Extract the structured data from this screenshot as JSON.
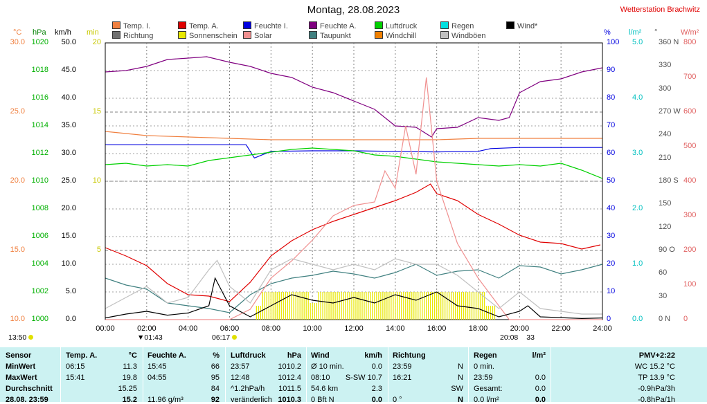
{
  "title": "Montag, 28.08.2023",
  "station": "Wetterstation Brachwitz",
  "legend": [
    {
      "label": "Temp. I.",
      "color": "#f08040"
    },
    {
      "label": "Richtung",
      "color": "#707070"
    },
    {
      "label": "Temp. A.",
      "color": "#e00000"
    },
    {
      "label": "Sonnenschein",
      "color": "#e8e800"
    },
    {
      "label": "Feuchte I.",
      "color": "#0000e0"
    },
    {
      "label": "Solar",
      "color": "#f09090"
    },
    {
      "label": "Feuchte A.",
      "color": "#800080"
    },
    {
      "label": "Taupunkt",
      "color": "#408080"
    },
    {
      "label": "Luftdruck",
      "color": "#00d000"
    },
    {
      "label": "Windchill",
      "color": "#f08000"
    },
    {
      "label": "Regen",
      "color": "#00e0e0"
    },
    {
      "label": "Windböen",
      "color": "#c0c0c0"
    },
    {
      "label": "Wind*",
      "color": "#000000"
    }
  ],
  "units": {
    "temp": "°C",
    "hpa": "hPa",
    "kmh": "km/h",
    "min": "min",
    "pct": "%",
    "rain": "l/m²",
    "dir": "°",
    "solar": "W/m²"
  },
  "chart_data": {
    "type": "line",
    "x_ticks": [
      "00:00",
      "02:00",
      "04:00",
      "06:00",
      "08:00",
      "10:00",
      "12:00",
      "14:00",
      "16:00",
      "18:00",
      "20:00",
      "22:00",
      "24:00"
    ],
    "axes": {
      "temp_c": {
        "ticks": [
          "30.0",
          "25.0",
          "20.0",
          "15.0",
          "10.0"
        ],
        "range": [
          10,
          30
        ]
      },
      "pressure_hpa": {
        "ticks": [
          "1020",
          "1018",
          "1016",
          "1014",
          "1012",
          "1010",
          "1008",
          "1006",
          "1004",
          "1002",
          "1000"
        ],
        "range": [
          1000,
          1020
        ]
      },
      "wind_kmh": {
        "ticks": [
          "50.0",
          "45.0",
          "40.0",
          "35.0",
          "30.0",
          "25.0",
          "20.0",
          "15.0",
          "10.0",
          "5.0",
          "0.0"
        ],
        "range": [
          0,
          50
        ]
      },
      "sun_min": {
        "ticks": [
          "20",
          "15",
          "10",
          "5"
        ],
        "range": [
          0,
          20
        ]
      },
      "humidity_pct": {
        "ticks": [
          "100",
          "90",
          "80",
          "70",
          "60",
          "50",
          "40",
          "30",
          "20",
          "10",
          "0"
        ],
        "range": [
          0,
          100
        ]
      },
      "rain_lm2": {
        "ticks": [
          "5.0",
          "4.0",
          "3.0",
          "2.0",
          "1.0",
          "0.0"
        ],
        "range": [
          0,
          5
        ]
      },
      "direction_deg": {
        "ticks": [
          "360 N",
          "330",
          "300",
          "270 W",
          "240",
          "210",
          "180 S",
          "150",
          "120",
          "90 O",
          "60",
          "30",
          "0 N"
        ],
        "range": [
          0,
          360
        ]
      },
      "solar_wm2": {
        "ticks": [
          "800",
          "700",
          "600",
          "500",
          "400",
          "300",
          "200",
          "100",
          "0"
        ],
        "range": [
          0,
          800
        ]
      }
    },
    "series": [
      {
        "name": "Temp. A.",
        "axis": "temp_c",
        "color": "#e00000",
        "points": [
          [
            0,
            15.2
          ],
          [
            1,
            14.6
          ],
          [
            2,
            13.9
          ],
          [
            3,
            12.6
          ],
          [
            4,
            11.8
          ],
          [
            5,
            11.7
          ],
          [
            6,
            11.3
          ],
          [
            7,
            12.7
          ],
          [
            8,
            14.6
          ],
          [
            9,
            15.7
          ],
          [
            10,
            16.5
          ],
          [
            11,
            17.1
          ],
          [
            12,
            17.6
          ],
          [
            13,
            18.1
          ],
          [
            14,
            18.6
          ],
          [
            15,
            19.2
          ],
          [
            15.7,
            19.8
          ],
          [
            16,
            19.1
          ],
          [
            17,
            18.6
          ],
          [
            18,
            17.6
          ],
          [
            19,
            16.9
          ],
          [
            20,
            16.1
          ],
          [
            21,
            15.6
          ],
          [
            22,
            15.5
          ],
          [
            23,
            15.1
          ],
          [
            23.9,
            15.4
          ]
        ]
      },
      {
        "name": "Temp. I.",
        "axis": "temp_c",
        "color": "#f08040",
        "points": [
          [
            0,
            23.6
          ],
          [
            2,
            23.3
          ],
          [
            4,
            23.2
          ],
          [
            6,
            23.1
          ],
          [
            8,
            23.0
          ],
          [
            10,
            23.0
          ],
          [
            12,
            23.0
          ],
          [
            14,
            23.0
          ],
          [
            16,
            23.0
          ],
          [
            18,
            23.1
          ],
          [
            20,
            23.1
          ],
          [
            22,
            23.1
          ],
          [
            24,
            23.1
          ]
        ]
      },
      {
        "name": "Feuchte A.",
        "axis": "humidity_pct",
        "color": "#800080",
        "points": [
          [
            0,
            89.5
          ],
          [
            1,
            90
          ],
          [
            2,
            91.5
          ],
          [
            3,
            94
          ],
          [
            4,
            94.5
          ],
          [
            4.9,
            95
          ],
          [
            6,
            93
          ],
          [
            7,
            91.5
          ],
          [
            8,
            89
          ],
          [
            9,
            87.5
          ],
          [
            10,
            84
          ],
          [
            11,
            82
          ],
          [
            12,
            79
          ],
          [
            13,
            76
          ],
          [
            14,
            70
          ],
          [
            15,
            69.5
          ],
          [
            15.75,
            66
          ],
          [
            16,
            69
          ],
          [
            17,
            69.5
          ],
          [
            18,
            73
          ],
          [
            19,
            72
          ],
          [
            19.5,
            73
          ],
          [
            20,
            82
          ],
          [
            21,
            86
          ],
          [
            22,
            87
          ],
          [
            23,
            89.5
          ],
          [
            24,
            91
          ]
        ]
      },
      {
        "name": "Feuchte I.",
        "axis": "humidity_pct",
        "color": "#0000e0",
        "points": [
          [
            0,
            63.2
          ],
          [
            6.8,
            63.2
          ],
          [
            7.2,
            58.4
          ],
          [
            8,
            60.8
          ],
          [
            10,
            61
          ],
          [
            12,
            61
          ],
          [
            14,
            60.8
          ],
          [
            16,
            60.6
          ],
          [
            18,
            60.8
          ],
          [
            18.6,
            61.8
          ],
          [
            20,
            62.2
          ],
          [
            22,
            62.2
          ],
          [
            24,
            62.2
          ]
        ]
      },
      {
        "name": "Luftdruck",
        "axis": "pressure_hpa",
        "color": "#00d000",
        "points": [
          [
            0,
            1011.2
          ],
          [
            1,
            1011.3
          ],
          [
            2,
            1011.1
          ],
          [
            3,
            1011.2
          ],
          [
            4,
            1011.1
          ],
          [
            5,
            1011.5
          ],
          [
            6,
            1011.7
          ],
          [
            7,
            1011.9
          ],
          [
            8,
            1012.1
          ],
          [
            9,
            1012.3
          ],
          [
            10,
            1012.4
          ],
          [
            11,
            1012.3
          ],
          [
            12,
            1012.2
          ],
          [
            13,
            1011.9
          ],
          [
            14,
            1011.8
          ],
          [
            15,
            1011.6
          ],
          [
            16,
            1011.4
          ],
          [
            17,
            1011.3
          ],
          [
            18,
            1011.2
          ],
          [
            19,
            1011.1
          ],
          [
            20,
            1011.2
          ],
          [
            21,
            1011.1
          ],
          [
            22,
            1011.3
          ],
          [
            23,
            1010.8
          ],
          [
            24,
            1010.2
          ]
        ]
      },
      {
        "name": "Taupunkt",
        "axis": "temp_c",
        "color": "#408080",
        "points": [
          [
            0,
            13.0
          ],
          [
            1,
            12.5
          ],
          [
            2,
            12.2
          ],
          [
            3,
            11.2
          ],
          [
            4,
            11.0
          ],
          [
            5,
            10.8
          ],
          [
            6,
            10.5
          ],
          [
            7,
            11.8
          ],
          [
            8,
            12.6
          ],
          [
            9,
            13.0
          ],
          [
            10,
            13.2
          ],
          [
            11,
            13.5
          ],
          [
            12,
            13.3
          ],
          [
            13,
            13.0
          ],
          [
            14,
            13.4
          ],
          [
            15,
            14.0
          ],
          [
            16,
            13.2
          ],
          [
            17,
            13.5
          ],
          [
            18,
            13.6
          ],
          [
            19,
            13.0
          ],
          [
            20,
            13.9
          ],
          [
            21,
            13.8
          ],
          [
            22,
            13.3
          ],
          [
            23,
            13.6
          ],
          [
            24,
            14.0
          ]
        ]
      },
      {
        "name": "Solar",
        "axis": "solar_wm2",
        "color": "#f09090",
        "points": [
          [
            0,
            0
          ],
          [
            6,
            0
          ],
          [
            7,
            30
          ],
          [
            8,
            120
          ],
          [
            9,
            170
          ],
          [
            10,
            230
          ],
          [
            11,
            300
          ],
          [
            12,
            330
          ],
          [
            13,
            340
          ],
          [
            13.5,
            430
          ],
          [
            14,
            380
          ],
          [
            14.5,
            560
          ],
          [
            15,
            420
          ],
          [
            15.5,
            700
          ],
          [
            16,
            400
          ],
          [
            17,
            220
          ],
          [
            18,
            120
          ],
          [
            19,
            40
          ],
          [
            19.5,
            0
          ],
          [
            24,
            0
          ]
        ]
      },
      {
        "name": "Wind*",
        "axis": "wind_kmh",
        "color": "#000000",
        "points": [
          [
            0,
            0.3
          ],
          [
            1,
            1.0
          ],
          [
            2,
            1.5
          ],
          [
            3,
            0.8
          ],
          [
            4,
            1.2
          ],
          [
            5,
            2.5
          ],
          [
            5.3,
            7.5
          ],
          [
            6,
            2.5
          ],
          [
            7,
            0.5
          ],
          [
            8,
            2.5
          ],
          [
            9,
            4.5
          ],
          [
            10,
            3.5
          ],
          [
            11,
            3.0
          ],
          [
            12,
            4.0
          ],
          [
            13,
            3.0
          ],
          [
            14,
            4.5
          ],
          [
            15,
            3.5
          ],
          [
            16,
            5.0
          ],
          [
            17,
            2.5
          ],
          [
            18,
            2.0
          ],
          [
            19,
            0.5
          ],
          [
            20,
            1.5
          ],
          [
            20.4,
            2.5
          ],
          [
            21,
            0.5
          ],
          [
            23,
            0.2
          ],
          [
            24,
            0.3
          ]
        ]
      },
      {
        "name": "Windböen",
        "axis": "wind_kmh",
        "color": "#c0c0c0",
        "points": [
          [
            0,
            2
          ],
          [
            1,
            4
          ],
          [
            2,
            6
          ],
          [
            3,
            3
          ],
          [
            4,
            4
          ],
          [
            5,
            9
          ],
          [
            5.4,
            10.7
          ],
          [
            6,
            6
          ],
          [
            7,
            3
          ],
          [
            8,
            9
          ],
          [
            9,
            11
          ],
          [
            10,
            10
          ],
          [
            11,
            9
          ],
          [
            12,
            10
          ],
          [
            13,
            9
          ],
          [
            14,
            11
          ],
          [
            15,
            10
          ],
          [
            16,
            10
          ],
          [
            17,
            8
          ],
          [
            18,
            5
          ],
          [
            19,
            2
          ],
          [
            20,
            5
          ],
          [
            21,
            2
          ],
          [
            23,
            1
          ],
          [
            24,
            1
          ]
        ]
      }
    ]
  },
  "annotations": {
    "left_time": "13:50",
    "sunrise_marker": "01:43",
    "sunrise": "06:17",
    "sunset": "20:08",
    "sunset_min": "33"
  },
  "table": {
    "sensor": {
      "header": "Sensor",
      "rows": [
        "MinWert",
        "MaxWert",
        "Durchschnitt",
        "28.08. 23:59"
      ]
    },
    "temp": {
      "header": "Temp. A.",
      "unit": "°C",
      "rows": [
        [
          "06:15",
          "11.3"
        ],
        [
          "15:41",
          "19.8"
        ],
        [
          "",
          "15.25"
        ],
        [
          "",
          "15.2"
        ]
      ]
    },
    "humidity": {
      "header": "Feuchte A.",
      "unit": "%",
      "rows": [
        [
          "15:45",
          "66"
        ],
        [
          "04:55",
          "95"
        ],
        [
          "",
          "84"
        ],
        [
          "11.96 g/m³",
          "92"
        ]
      ]
    },
    "pressure": {
      "header": "Luftdruck",
      "unit": "hPa",
      "rows": [
        [
          "23:57",
          "1010.2"
        ],
        [
          "12:48",
          "1012.4"
        ],
        [
          "^1.2hPa/h",
          "1011.5"
        ],
        [
          "veränderlich",
          "1010.3"
        ]
      ]
    },
    "wind": {
      "header": "Wind",
      "unit": "km/h",
      "rows": [
        [
          "Ø 10 min.",
          "0.0"
        ],
        [
          "08:10",
          "S-SW 10.7"
        ],
        [
          "54.6 km",
          "2.3"
        ],
        [
          "0 Bft N",
          "0.0"
        ]
      ]
    },
    "direction": {
      "header": "Richtung",
      "rows": [
        [
          "23:59",
          "N"
        ],
        [
          "16:21",
          "N"
        ],
        [
          "",
          "SW"
        ],
        [
          "0 °",
          "N"
        ]
      ]
    },
    "rain": {
      "header": "Regen",
      "unit": "l/m²",
      "rows": [
        [
          "0 min.",
          ""
        ],
        [
          "23:59",
          "0.0"
        ],
        [
          "Gesamt:",
          "0.0"
        ],
        [
          "0.0 l/m²",
          "0.0"
        ]
      ]
    },
    "pmv": {
      "rows": [
        "PMV+2:22",
        "WC 15.2 °C",
        "TP 13.9 °C",
        "-0.9hPa/3h",
        "-0.8hPa/1h"
      ]
    }
  }
}
